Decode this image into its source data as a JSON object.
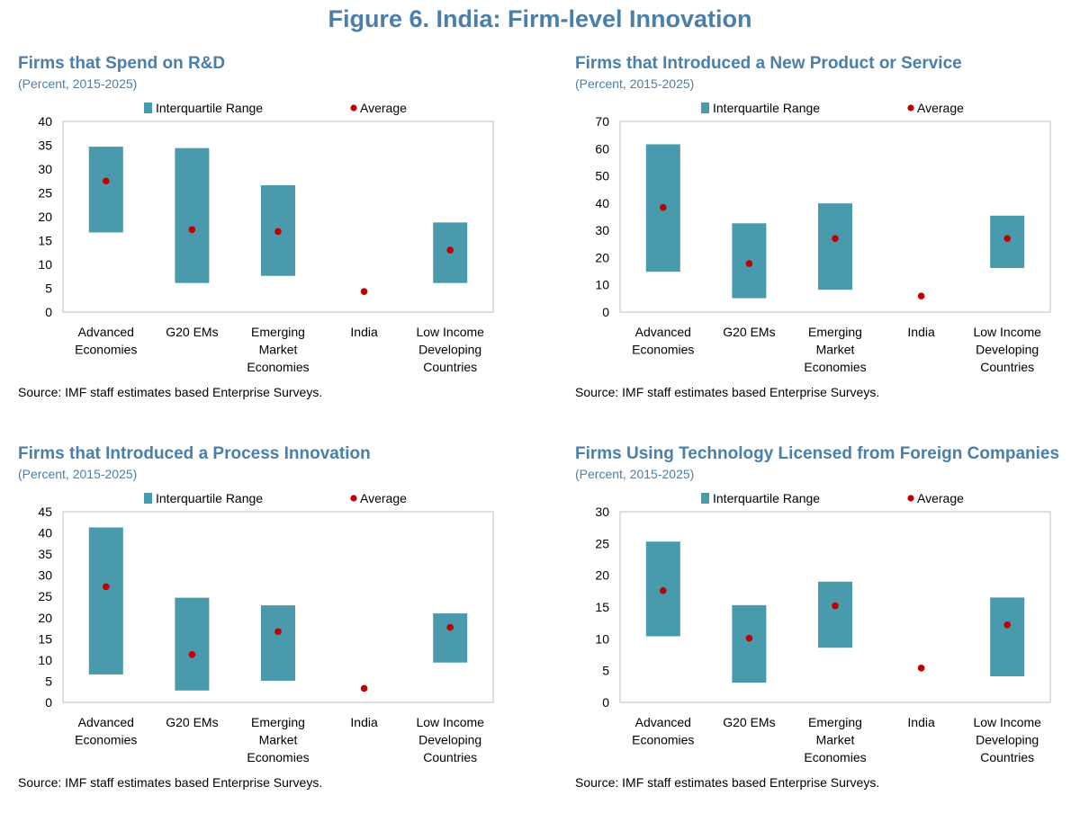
{
  "figure_title": "Figure 6. India: Firm-level Innovation",
  "colors": {
    "title": "#4a7eab",
    "iqr": "#4a9aae",
    "average": "#c00000",
    "frame": "#bfbfbf"
  },
  "legend": {
    "iqr_label": "Interquartile Range",
    "avg_label": "Average"
  },
  "chart_data": [
    {
      "type": "range_bar",
      "title": "Firms that Spend on R&D",
      "subtitle": "(Percent, 2015-2025)",
      "source": "Source: IMF staff estimates based Enterprise Surveys.",
      "categories": [
        [
          "Advanced",
          "Economies"
        ],
        [
          "G20 EMs"
        ],
        [
          "Emerging",
          "Market",
          "Economies"
        ],
        [
          "India"
        ],
        [
          "Low Income",
          "Developing",
          "Countries"
        ]
      ],
      "ylim": [
        0,
        40
      ],
      "yticks": [
        0,
        5,
        10,
        15,
        20,
        25,
        30,
        35,
        40
      ],
      "series": [
        {
          "name": "Interquartile Range",
          "low": [
            16.7,
            6.1,
            7.6,
            null,
            6.1
          ],
          "high": [
            34.7,
            34.4,
            26.6,
            null,
            18.8
          ]
        },
        {
          "name": "Average",
          "values": [
            27.5,
            17.3,
            16.9,
            4.3,
            13.0
          ]
        }
      ]
    },
    {
      "type": "range_bar",
      "title": "Firms that Introduced a New Product or Service",
      "subtitle": "(Percent, 2015-2025)",
      "source": "Source: IMF staff estimates based Enterprise Surveys.",
      "categories": [
        [
          "Advanced",
          "Economies"
        ],
        [
          "G20 EMs"
        ],
        [
          "Emerging",
          "Market",
          "Economies"
        ],
        [
          "India"
        ],
        [
          "Low Income",
          "Developing",
          "Countries"
        ]
      ],
      "ylim": [
        0,
        70
      ],
      "yticks": [
        0,
        10,
        20,
        30,
        40,
        50,
        60,
        70
      ],
      "series": [
        {
          "name": "Interquartile Range",
          "low": [
            14.8,
            5.1,
            8.2,
            null,
            16.2
          ],
          "high": [
            61.6,
            32.6,
            39.9,
            null,
            35.4
          ]
        },
        {
          "name": "Average",
          "values": [
            38.4,
            17.8,
            27.0,
            5.9,
            27.0
          ]
        }
      ]
    },
    {
      "type": "range_bar",
      "title": "Firms that Introduced a Process Innovation",
      "subtitle": "(Percent, 2015-2025)",
      "source": "Source: IMF staff estimates based Enterprise Surveys.",
      "categories": [
        [
          "Advanced",
          "Economies"
        ],
        [
          "G20 EMs"
        ],
        [
          "Emerging",
          "Market",
          "Economies"
        ],
        [
          "India"
        ],
        [
          "Low Income",
          "Developing",
          "Countries"
        ]
      ],
      "ylim": [
        0,
        45
      ],
      "yticks": [
        0,
        5,
        10,
        15,
        20,
        25,
        30,
        35,
        40,
        45
      ],
      "series": [
        {
          "name": "Interquartile Range",
          "low": [
            6.6,
            2.8,
            5.1,
            null,
            9.4
          ],
          "high": [
            41.3,
            24.7,
            22.9,
            null,
            21.0
          ]
        },
        {
          "name": "Average",
          "values": [
            27.3,
            11.3,
            16.7,
            3.3,
            17.7
          ]
        }
      ]
    },
    {
      "type": "range_bar",
      "title": "Firms Using Technology Licensed from Foreign Companies",
      "subtitle": "(Percent, 2015-2025)",
      "source": "Source: IMF staff estimates based Enterprise Surveys.",
      "categories": [
        [
          "Advanced",
          "Economies"
        ],
        [
          "G20 EMs"
        ],
        [
          "Emerging",
          "Market",
          "Economies"
        ],
        [
          "India"
        ],
        [
          "Low Income",
          "Developing",
          "Countries"
        ]
      ],
      "ylim": [
        0,
        30
      ],
      "yticks": [
        0,
        5,
        10,
        15,
        20,
        25,
        30
      ],
      "series": [
        {
          "name": "Interquartile Range",
          "low": [
            10.4,
            3.1,
            8.6,
            null,
            4.1
          ],
          "high": [
            25.3,
            15.3,
            19.0,
            null,
            16.5
          ]
        },
        {
          "name": "Average",
          "values": [
            17.6,
            10.1,
            15.2,
            5.4,
            12.2
          ]
        }
      ]
    }
  ]
}
